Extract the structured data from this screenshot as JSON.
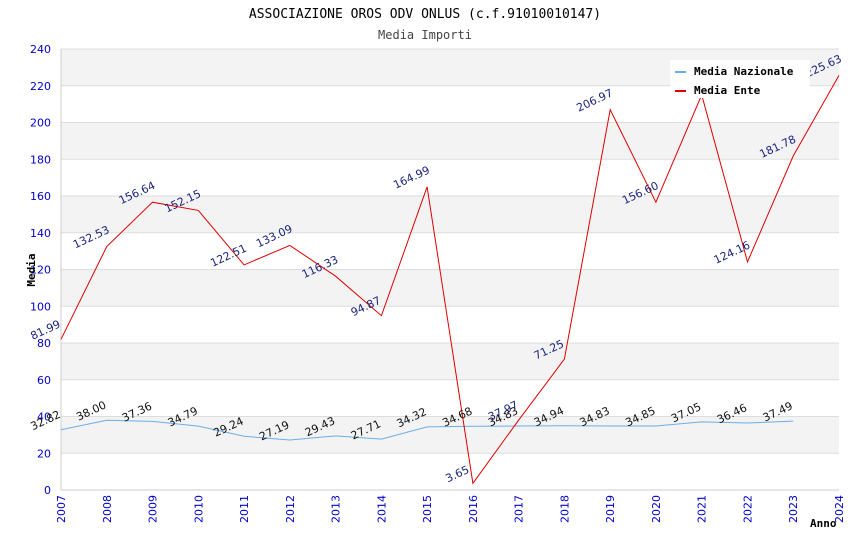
{
  "chart_data": {
    "type": "line",
    "title": "ASSOCIAZIONE OROS ODV ONLUS (c.f.91010010147)",
    "subtitle": "Media Importi",
    "xlabel": "Anno",
    "ylabel": "Media",
    "ylim": [
      0,
      240
    ],
    "yticks": [
      0,
      20,
      40,
      60,
      80,
      100,
      120,
      140,
      160,
      180,
      200,
      220,
      240
    ],
    "x": [
      "2007",
      "2008",
      "2009",
      "2010",
      "2011",
      "2012",
      "2013",
      "2014",
      "2015",
      "2016",
      "2017",
      "2018",
      "2019",
      "2020",
      "2021",
      "2022",
      "2023",
      "2024"
    ],
    "grid": true,
    "legend_position": "top-right",
    "series": [
      {
        "name": "Media Nazionale",
        "color": "#6aaee8",
        "label_color": "#111111",
        "values": [
          32.82,
          38.0,
          37.36,
          34.79,
          29.24,
          27.19,
          29.43,
          27.71,
          34.32,
          34.68,
          34.83,
          34.94,
          34.83,
          34.85,
          37.05,
          36.46,
          37.49,
          null
        ],
        "labels": [
          "32.82",
          "38.00",
          "37.36",
          "34.79",
          "29.24",
          "27.19",
          "29.43",
          "27.71",
          "34.32",
          "34.68",
          "34.83",
          "34.94",
          "34.83",
          "34.85",
          "37.05",
          "36.46",
          "37.49",
          ""
        ]
      },
      {
        "name": "Media Ente",
        "color": "#e00000",
        "label_color": "#1a237e",
        "values": [
          81.99,
          132.53,
          156.64,
          152.15,
          122.51,
          133.09,
          116.33,
          94.87,
          164.99,
          3.65,
          37.97,
          71.25,
          206.97,
          156.6,
          215.0,
          124.16,
          181.78,
          225.63
        ],
        "labels": [
          "81.99",
          "132.53",
          "156.64",
          "152.15",
          "122.51",
          "133.09",
          "116.33",
          "94.87",
          "164.99",
          "3.65",
          "37.97",
          "71.25",
          "206.97",
          "156.60",
          "",
          "124.16",
          "181.78",
          "225.63"
        ]
      }
    ]
  }
}
